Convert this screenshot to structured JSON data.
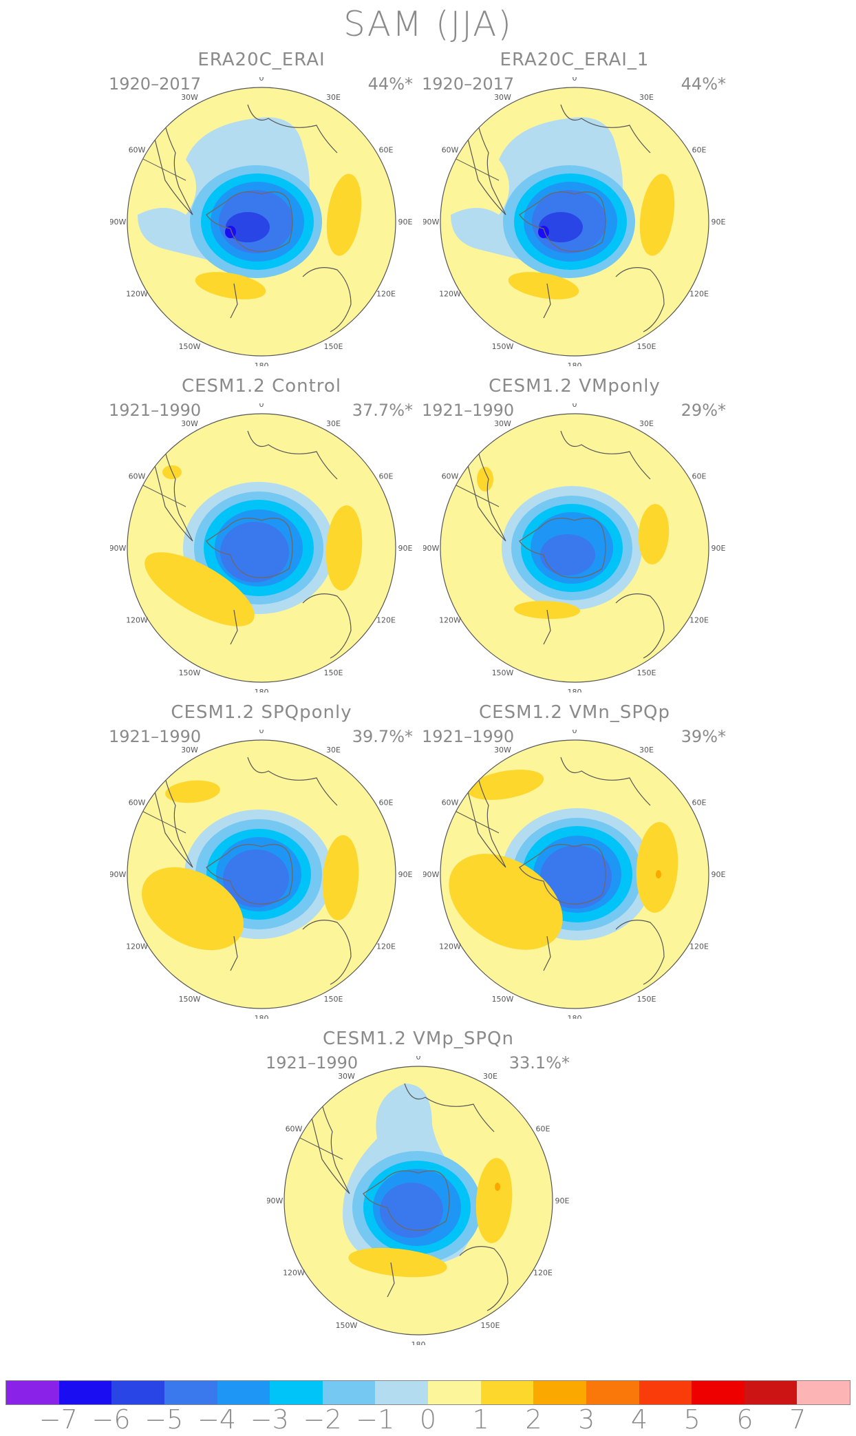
{
  "title": "SAM (JJA)",
  "panels": [
    {
      "name": "ERA20C_ERAI",
      "years": "1920–2017",
      "pct": "44%*",
      "variant": "era"
    },
    {
      "name": "ERA20C_ERAI_1",
      "years": "1920–2017",
      "pct": "44%*",
      "variant": "era"
    },
    {
      "name": "CESM1.2 Control",
      "years": "1921–1990",
      "pct": "37.7%*",
      "variant": "ctrl"
    },
    {
      "name": "CESM1.2 VMponly",
      "years": "1921–1990",
      "pct": "29%*",
      "variant": "vmp"
    },
    {
      "name": "CESM1.2 SPQponly",
      "years": "1921–1990",
      "pct": "39.7%*",
      "variant": "spq"
    },
    {
      "name": "CESM1.2 VMn_SPQp",
      "years": "1921–1990",
      "pct": "39%*",
      "variant": "vmn"
    },
    {
      "name": "CESM1.2 VMp_SPQn",
      "years": "1921–1990",
      "pct": "33.1%*",
      "variant": "vmpspqn"
    }
  ],
  "longitude_labels": [
    "0",
    "30E",
    "60E",
    "90E",
    "120E",
    "150E",
    "180",
    "150W",
    "120W",
    "90W",
    "60W",
    "30W"
  ],
  "colorbar": {
    "labels": [
      "−7",
      "−6",
      "−5",
      "−4",
      "−3",
      "−2",
      "−1",
      "0",
      "1",
      "2",
      "3",
      "4",
      "5",
      "6",
      "7"
    ],
    "colors": [
      "#8a22e8",
      "#1a0df2",
      "#2a45e6",
      "#3a78ee",
      "#1e96f5",
      "#00c3f7",
      "#74c8f2",
      "#b4dcf0",
      "#fdf59a",
      "#fdd72c",
      "#fba800",
      "#fa780a",
      "#fa3c0a",
      "#ee0000",
      "#cd1414",
      "#fcb4b4"
    ]
  }
}
